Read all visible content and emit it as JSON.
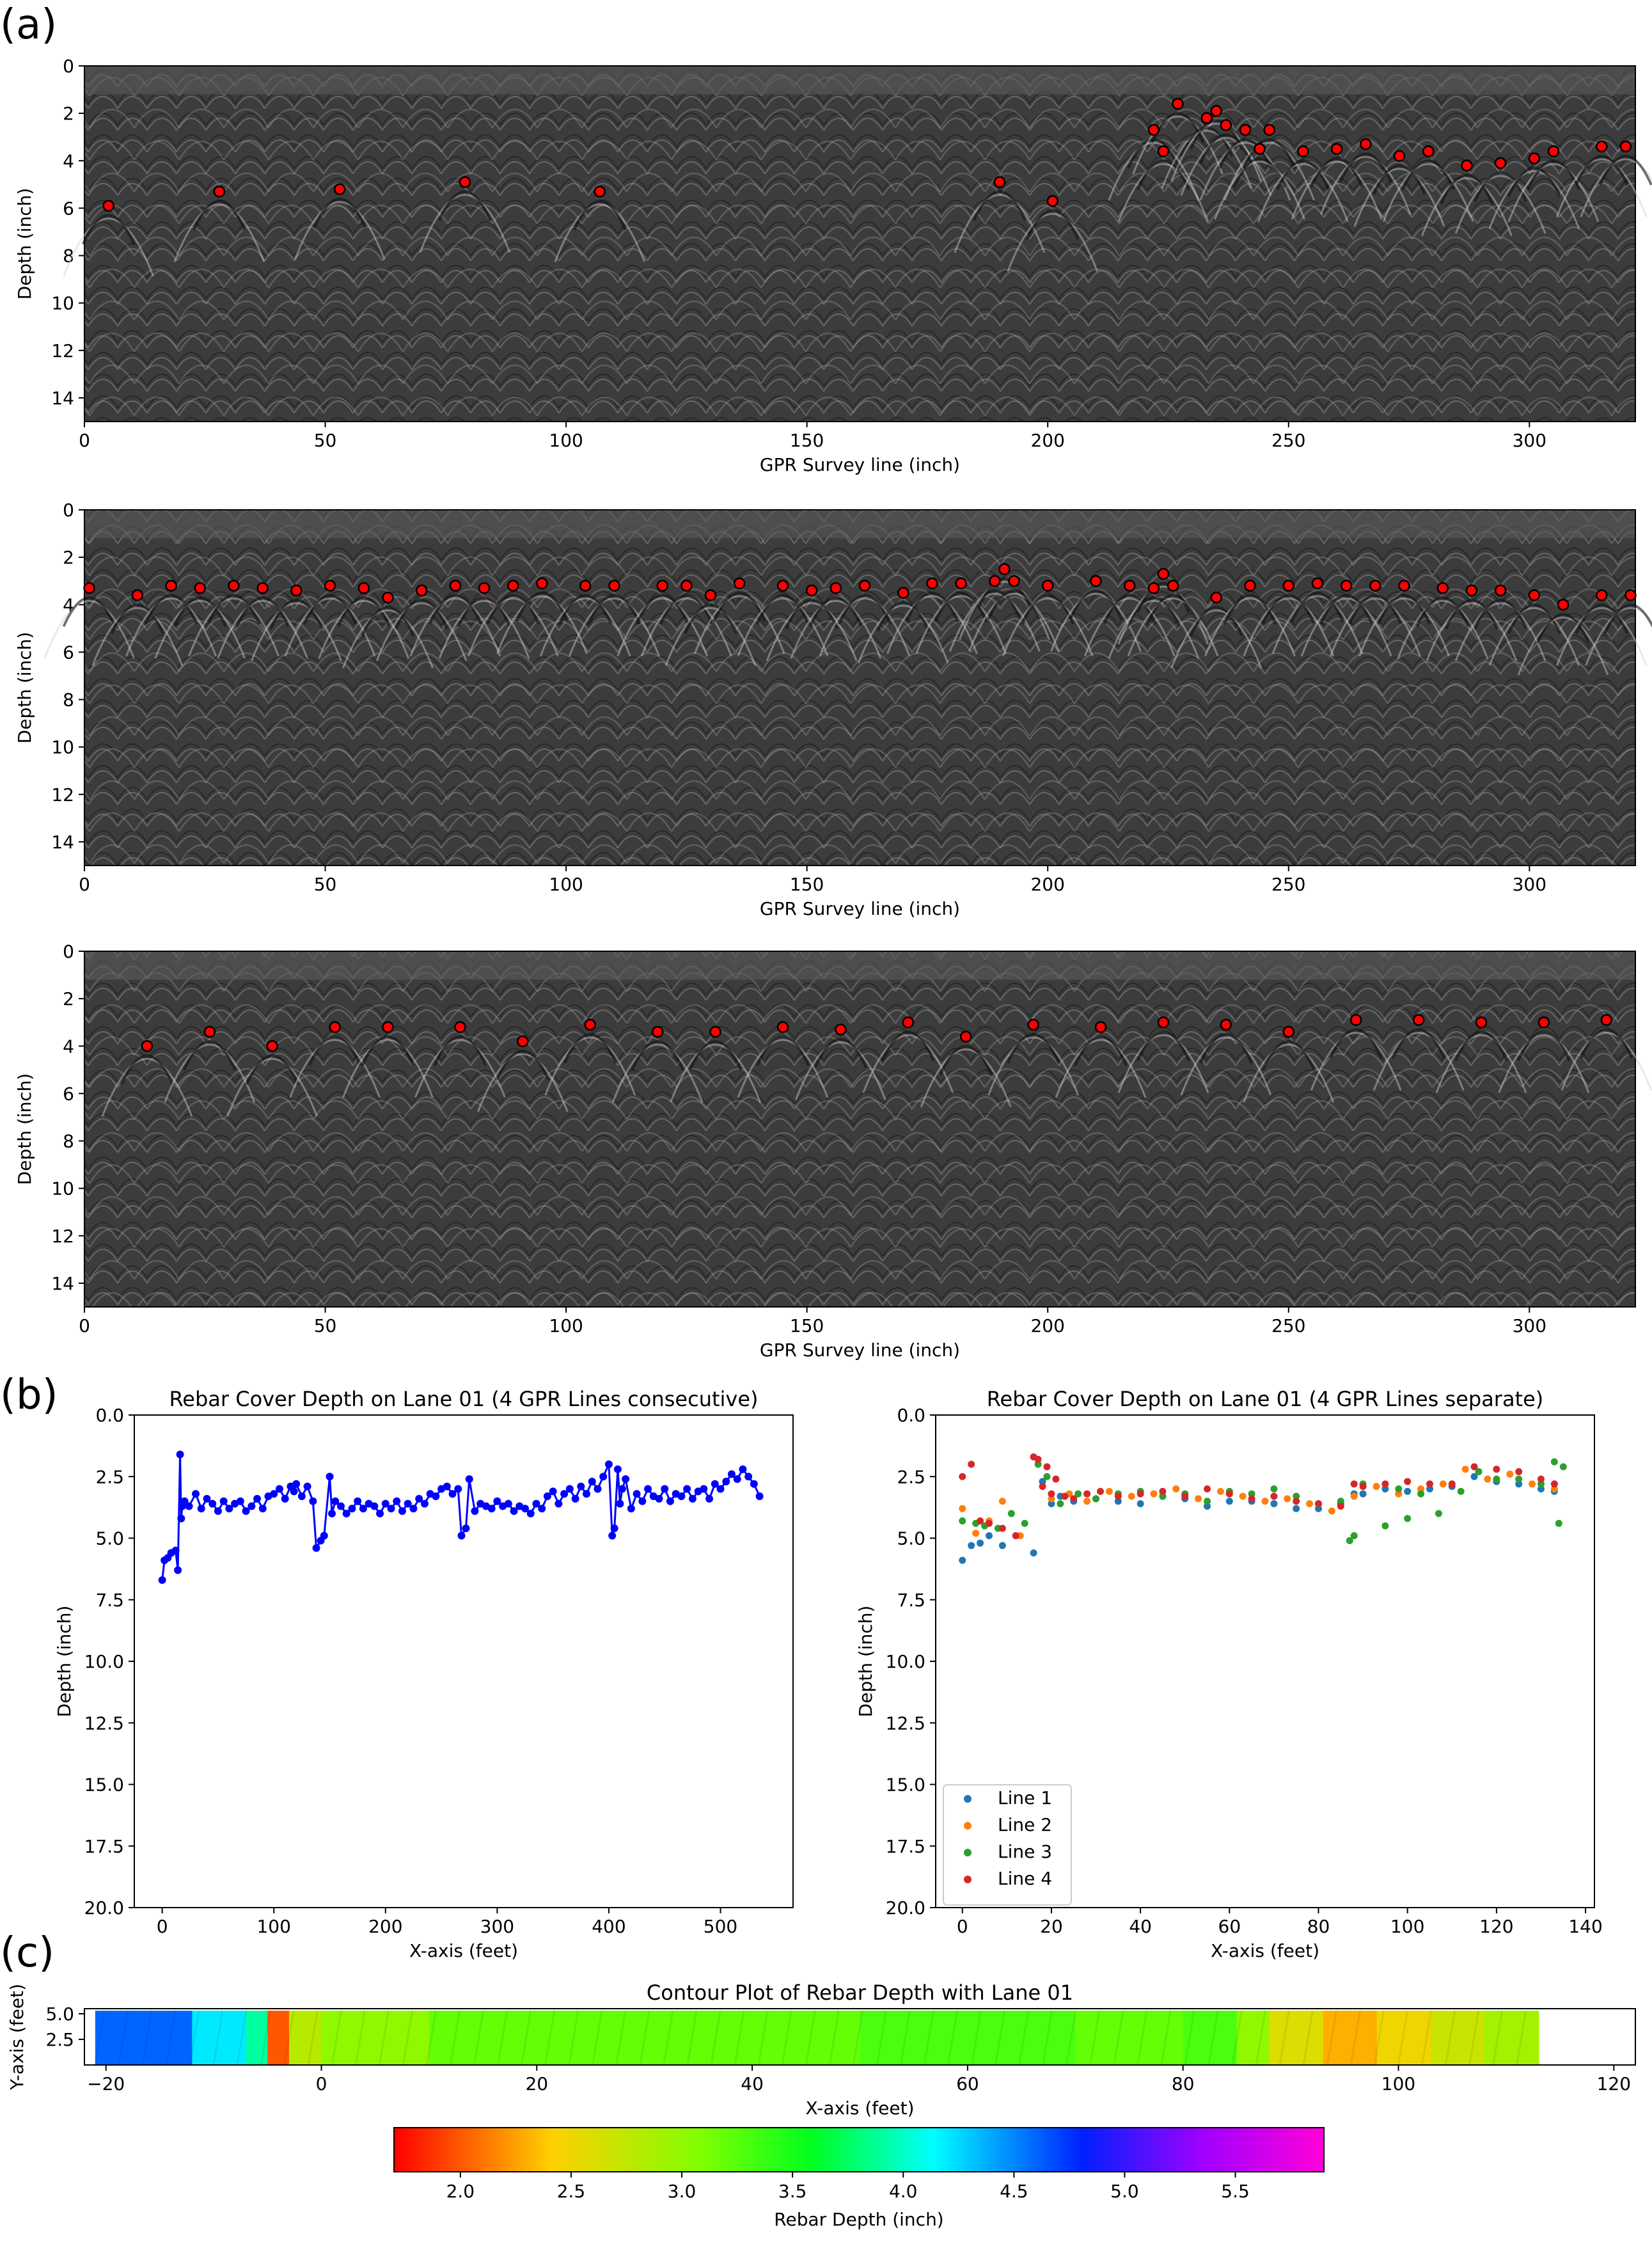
{
  "panel_labels": {
    "a": "(a)",
    "b": "(b)",
    "c": "(c)"
  },
  "colors": {
    "marker_fill": "#ff0000",
    "marker_edge": "#000000",
    "line_blue": "#0000ff",
    "line1": "#1f77b4",
    "line2": "#ff7f0e",
    "line3": "#2ca02c",
    "line4": "#d62728",
    "radargram_bg": "#3c3c3c"
  },
  "chart_data": [
    {
      "type": "scatter",
      "subtype": "radargram-image-with-detected-hyperbola-apexes",
      "title": "",
      "xlabel": "GPR Survey line (inch)",
      "ylabel": "Depth (inch)",
      "xlim": [
        0,
        322
      ],
      "ylim": [
        15,
        0
      ],
      "xticks": [
        "0",
        "50",
        "100",
        "150",
        "200",
        "250",
        "300"
      ],
      "yticks": [
        "0",
        "2",
        "4",
        "6",
        "8",
        "10",
        "12",
        "14"
      ],
      "x": [
        5,
        28,
        53,
        79,
        107,
        190,
        201,
        222,
        224,
        227,
        233,
        235,
        237,
        241,
        244,
        246,
        253,
        260,
        266,
        273,
        279,
        287,
        294,
        301,
        305,
        315,
        320
      ],
      "y": [
        5.9,
        5.3,
        5.2,
        4.9,
        5.3,
        4.9,
        5.7,
        2.7,
        3.6,
        1.6,
        2.2,
        1.9,
        2.5,
        2.7,
        3.5,
        2.7,
        3.6,
        3.5,
        3.3,
        3.8,
        3.6,
        4.2,
        4.1,
        3.9,
        3.6,
        3.4,
        3.4
      ]
    },
    {
      "type": "scatter",
      "subtype": "radargram-image-with-detected-hyperbola-apexes",
      "title": "",
      "xlabel": "GPR Survey line (inch)",
      "ylabel": "Depth (inch)",
      "xlim": [
        0,
        322
      ],
      "ylim": [
        15,
        0
      ],
      "xticks": [
        "0",
        "50",
        "100",
        "150",
        "200",
        "250",
        "300"
      ],
      "yticks": [
        "0",
        "2",
        "4",
        "6",
        "8",
        "10",
        "12",
        "14"
      ],
      "x": [
        1,
        11,
        18,
        24,
        31,
        37,
        44,
        51,
        58,
        63,
        70,
        77,
        83,
        89,
        95,
        104,
        110,
        120,
        125,
        130,
        136,
        145,
        151,
        156,
        162,
        170,
        176,
        182,
        189,
        191,
        193,
        200,
        210,
        217,
        222,
        224,
        226,
        235,
        242,
        250,
        256,
        262,
        268,
        274,
        282,
        288,
        294,
        301,
        307,
        315,
        321
      ],
      "y": [
        3.3,
        3.6,
        3.2,
        3.3,
        3.2,
        3.3,
        3.4,
        3.2,
        3.3,
        3.7,
        3.4,
        3.2,
        3.3,
        3.2,
        3.1,
        3.2,
        3.2,
        3.2,
        3.2,
        3.6,
        3.1,
        3.2,
        3.4,
        3.3,
        3.2,
        3.5,
        3.1,
        3.1,
        3.0,
        2.5,
        3.0,
        3.2,
        3.0,
        3.2,
        3.3,
        2.7,
        3.2,
        3.7,
        3.2,
        3.2,
        3.1,
        3.2,
        3.2,
        3.2,
        3.3,
        3.4,
        3.4,
        3.6,
        4.0,
        3.6,
        3.6
      ]
    },
    {
      "type": "scatter",
      "subtype": "radargram-image-with-detected-hyperbola-apexes",
      "title": "",
      "xlabel": "GPR Survey line (inch)",
      "ylabel": "Depth (inch)",
      "xlim": [
        0,
        322
      ],
      "ylim": [
        15,
        0
      ],
      "xticks": [
        "0",
        "50",
        "100",
        "150",
        "200",
        "250",
        "300"
      ],
      "yticks": [
        "0",
        "2",
        "4",
        "6",
        "8",
        "10",
        "12",
        "14"
      ],
      "x": [
        13,
        26,
        39,
        52,
        63,
        78,
        91,
        105,
        119,
        131,
        145,
        157,
        171,
        183,
        197,
        211,
        224,
        237,
        250,
        264,
        277,
        290,
        303,
        316
      ],
      "y": [
        4.0,
        3.4,
        4.0,
        3.2,
        3.2,
        3.2,
        3.8,
        3.1,
        3.4,
        3.4,
        3.2,
        3.3,
        3.0,
        3.6,
        3.1,
        3.2,
        3.0,
        3.1,
        3.4,
        2.9,
        2.9,
        3.0,
        3.0,
        2.9
      ]
    },
    {
      "type": "line",
      "title": "Rebar Cover Depth on Lane 01 (4 GPR Lines consecutive)",
      "xlabel": "X-axis (feet)",
      "ylabel": "Depth (inch)",
      "xlim": [
        -25,
        565
      ],
      "ylim": [
        20,
        0
      ],
      "xticks": [
        "0",
        "100",
        "200",
        "300",
        "400",
        "500"
      ],
      "yticks": [
        "0.0",
        "2.5",
        "5.0",
        "7.5",
        "10.0",
        "12.5",
        "15.0",
        "17.5",
        "20.0"
      ],
      "x": [
        0,
        2,
        5,
        8,
        12,
        14,
        16,
        17,
        18,
        20,
        24,
        30,
        35,
        40,
        45,
        50,
        55,
        60,
        65,
        70,
        75,
        80,
        85,
        90,
        95,
        100,
        105,
        110,
        115,
        118,
        120,
        125,
        130,
        135,
        138,
        142,
        145,
        150,
        152,
        155,
        160,
        165,
        170,
        175,
        180,
        185,
        190,
        195,
        200,
        205,
        210,
        215,
        220,
        225,
        230,
        235,
        240,
        245,
        250,
        255,
        260,
        265,
        268,
        272,
        275,
        280,
        285,
        290,
        295,
        300,
        305,
        310,
        315,
        320,
        325,
        330,
        335,
        340,
        345,
        350,
        355,
        360,
        365,
        370,
        375,
        380,
        385,
        390,
        395,
        400,
        403,
        405,
        408,
        410,
        412,
        415,
        420,
        425,
        430,
        435,
        440,
        445,
        450,
        455,
        460,
        465,
        470,
        475,
        480,
        485,
        490,
        495,
        500,
        505,
        510,
        515,
        520,
        525,
        530,
        535
      ],
      "y": [
        6.7,
        5.9,
        5.8,
        5.6,
        5.5,
        6.3,
        1.6,
        4.2,
        3.7,
        3.5,
        3.7,
        3.2,
        3.8,
        3.4,
        3.6,
        3.9,
        3.5,
        3.8,
        3.6,
        3.5,
        3.9,
        3.7,
        3.4,
        3.8,
        3.3,
        3.2,
        3.0,
        3.4,
        2.9,
        3.1,
        2.8,
        3.3,
        2.9,
        3.5,
        5.4,
        5.1,
        4.9,
        2.5,
        4.0,
        3.5,
        3.7,
        4.0,
        3.8,
        3.5,
        3.8,
        3.6,
        3.7,
        4.0,
        3.6,
        3.8,
        3.5,
        3.9,
        3.6,
        3.8,
        3.4,
        3.6,
        3.2,
        3.3,
        3.0,
        2.9,
        3.2,
        3.0,
        4.9,
        4.6,
        2.6,
        3.9,
        3.6,
        3.7,
        3.8,
        3.5,
        3.7,
        3.6,
        3.9,
        3.7,
        3.8,
        4.0,
        3.6,
        3.8,
        3.3,
        3.1,
        3.6,
        3.2,
        3.0,
        3.4,
        2.9,
        3.2,
        2.7,
        3.0,
        2.5,
        2.0,
        4.9,
        4.6,
        2.2,
        3.6,
        3.0,
        2.6,
        3.8,
        3.2,
        3.5,
        3.0,
        3.3,
        3.4,
        3.0,
        3.5,
        3.2,
        3.3,
        3.0,
        3.4,
        3.1,
        3.0,
        3.4,
        2.8,
        3.0,
        2.7,
        2.4,
        2.6,
        2.2,
        2.5,
        2.8,
        3.3
      ]
    },
    {
      "type": "scatter",
      "title": "Rebar Cover Depth on Lane 01 (4 GPR Lines separate)",
      "xlabel": "X-axis (feet)",
      "ylabel": "Depth (inch)",
      "xlim": [
        -6,
        142
      ],
      "ylim": [
        20,
        0
      ],
      "xticks": [
        "0",
        "20",
        "40",
        "60",
        "80",
        "100",
        "120",
        "140"
      ],
      "yticks": [
        "0.0",
        "2.5",
        "5.0",
        "7.5",
        "10.0",
        "12.5",
        "15.0",
        "17.5",
        "20.0"
      ],
      "legend": {
        "position": "lower-left"
      },
      "series": [
        {
          "name": "Line 1",
          "x": [
            0,
            2,
            4,
            6,
            9,
            12,
            16,
            18,
            20,
            22,
            25,
            30,
            35,
            40,
            45,
            50,
            55,
            60,
            65,
            70,
            75,
            80,
            85,
            88,
            90,
            95,
            100,
            105,
            110,
            115,
            120,
            125,
            130,
            133
          ],
          "y": [
            5.9,
            5.3,
            5.2,
            4.9,
            5.3,
            4.9,
            5.6,
            2.7,
            3.6,
            3.3,
            3.5,
            3.4,
            3.5,
            3.6,
            3.3,
            3.4,
            3.7,
            3.5,
            3.5,
            3.6,
            3.8,
            3.8,
            3.6,
            3.2,
            3.2,
            3.0,
            3.1,
            3.0,
            2.9,
            2.5,
            2.7,
            2.8,
            3.0,
            3.1
          ]
        },
        {
          "name": "Line 2",
          "x": [
            0,
            3,
            6,
            9,
            13,
            17,
            20,
            24,
            28,
            33,
            38,
            43,
            48,
            53,
            58,
            63,
            68,
            73,
            78,
            83,
            88,
            93,
            98,
            103,
            108,
            113,
            118,
            123,
            128,
            133
          ],
          "y": [
            3.8,
            4.8,
            4.3,
            3.5,
            4.9,
            2.0,
            3.4,
            3.2,
            3.5,
            3.1,
            3.3,
            3.2,
            3.0,
            3.4,
            3.1,
            3.3,
            3.5,
            3.4,
            3.6,
            3.9,
            3.3,
            2.9,
            3.2,
            3.0,
            2.8,
            2.2,
            2.6,
            2.4,
            2.8,
            3.0
          ]
        },
        {
          "name": "Line 3",
          "x": [
            0,
            3,
            5,
            8,
            11,
            14,
            17,
            19,
            22,
            26,
            30,
            35,
            40,
            45,
            50,
            55,
            60,
            65,
            70,
            75,
            80,
            85,
            87,
            88,
            90,
            95,
            98,
            100,
            103,
            107,
            112,
            116,
            120,
            125,
            130,
            133,
            134,
            135
          ],
          "y": [
            4.3,
            4.4,
            4.5,
            4.6,
            4.0,
            4.4,
            2.0,
            2.5,
            3.6,
            3.2,
            3.4,
            3.2,
            3.1,
            3.3,
            3.2,
            3.5,
            3.1,
            3.2,
            3.0,
            3.3,
            3.6,
            3.5,
            5.1,
            4.9,
            2.8,
            4.5,
            3.0,
            4.2,
            3.2,
            4.0,
            3.1,
            2.3,
            2.6,
            2.6,
            2.8,
            1.9,
            4.4,
            2.1
          ]
        },
        {
          "name": "Line 4",
          "x": [
            0,
            2,
            4,
            6,
            9,
            12,
            16,
            17,
            18,
            19,
            20,
            21,
            23,
            25,
            28,
            31,
            35,
            40,
            45,
            50,
            55,
            60,
            65,
            70,
            75,
            80,
            85,
            88,
            90,
            95,
            100,
            105,
            110,
            115,
            120,
            125,
            130,
            133
          ],
          "y": [
            2.5,
            2.0,
            4.3,
            4.4,
            4.6,
            4.9,
            1.7,
            1.8,
            2.9,
            2.1,
            3.2,
            2.6,
            3.3,
            3.4,
            3.2,
            3.1,
            3.3,
            3.2,
            3.1,
            3.3,
            3.0,
            3.2,
            3.4,
            3.3,
            3.5,
            3.6,
            3.7,
            2.8,
            2.9,
            2.8,
            2.7,
            2.8,
            2.8,
            2.1,
            2.2,
            2.3,
            2.6,
            2.8
          ]
        }
      ]
    },
    {
      "type": "heatmap",
      "title": "Contour Plot of Rebar Depth with Lane 01",
      "xlabel": "X-axis (feet)",
      "ylabel": "Y-axis (feet)",
      "xlim": [
        -22,
        122
      ],
      "ylim": [
        0,
        5.5
      ],
      "xticks": [
        "−20",
        "0",
        "20",
        "40",
        "60",
        "80",
        "100",
        "120"
      ],
      "yticks": [
        "2.5",
        "5.0"
      ],
      "data_extent_x": [
        -21,
        113
      ],
      "x_bands": [
        -21,
        -12,
        -7,
        -5,
        -3,
        0,
        10,
        30,
        50,
        60,
        70,
        80,
        85,
        88,
        93,
        98,
        103,
        108,
        113
      ],
      "depth_bands": [
        4.6,
        4.2,
        3.9,
        2.0,
        2.8,
        3.0,
        3.2,
        3.2,
        3.3,
        3.3,
        3.2,
        3.3,
        3.0,
        2.6,
        2.3,
        2.5,
        2.7,
        2.9
      ],
      "colorbar": {
        "label": "Rebar Depth (inch)",
        "range": [
          1.7,
          5.9
        ],
        "ticks": [
          "2.0",
          "2.5",
          "3.0",
          "3.5",
          "4.0",
          "4.5",
          "5.0",
          "5.5"
        ],
        "colormap": "gist_rainbow"
      }
    }
  ]
}
